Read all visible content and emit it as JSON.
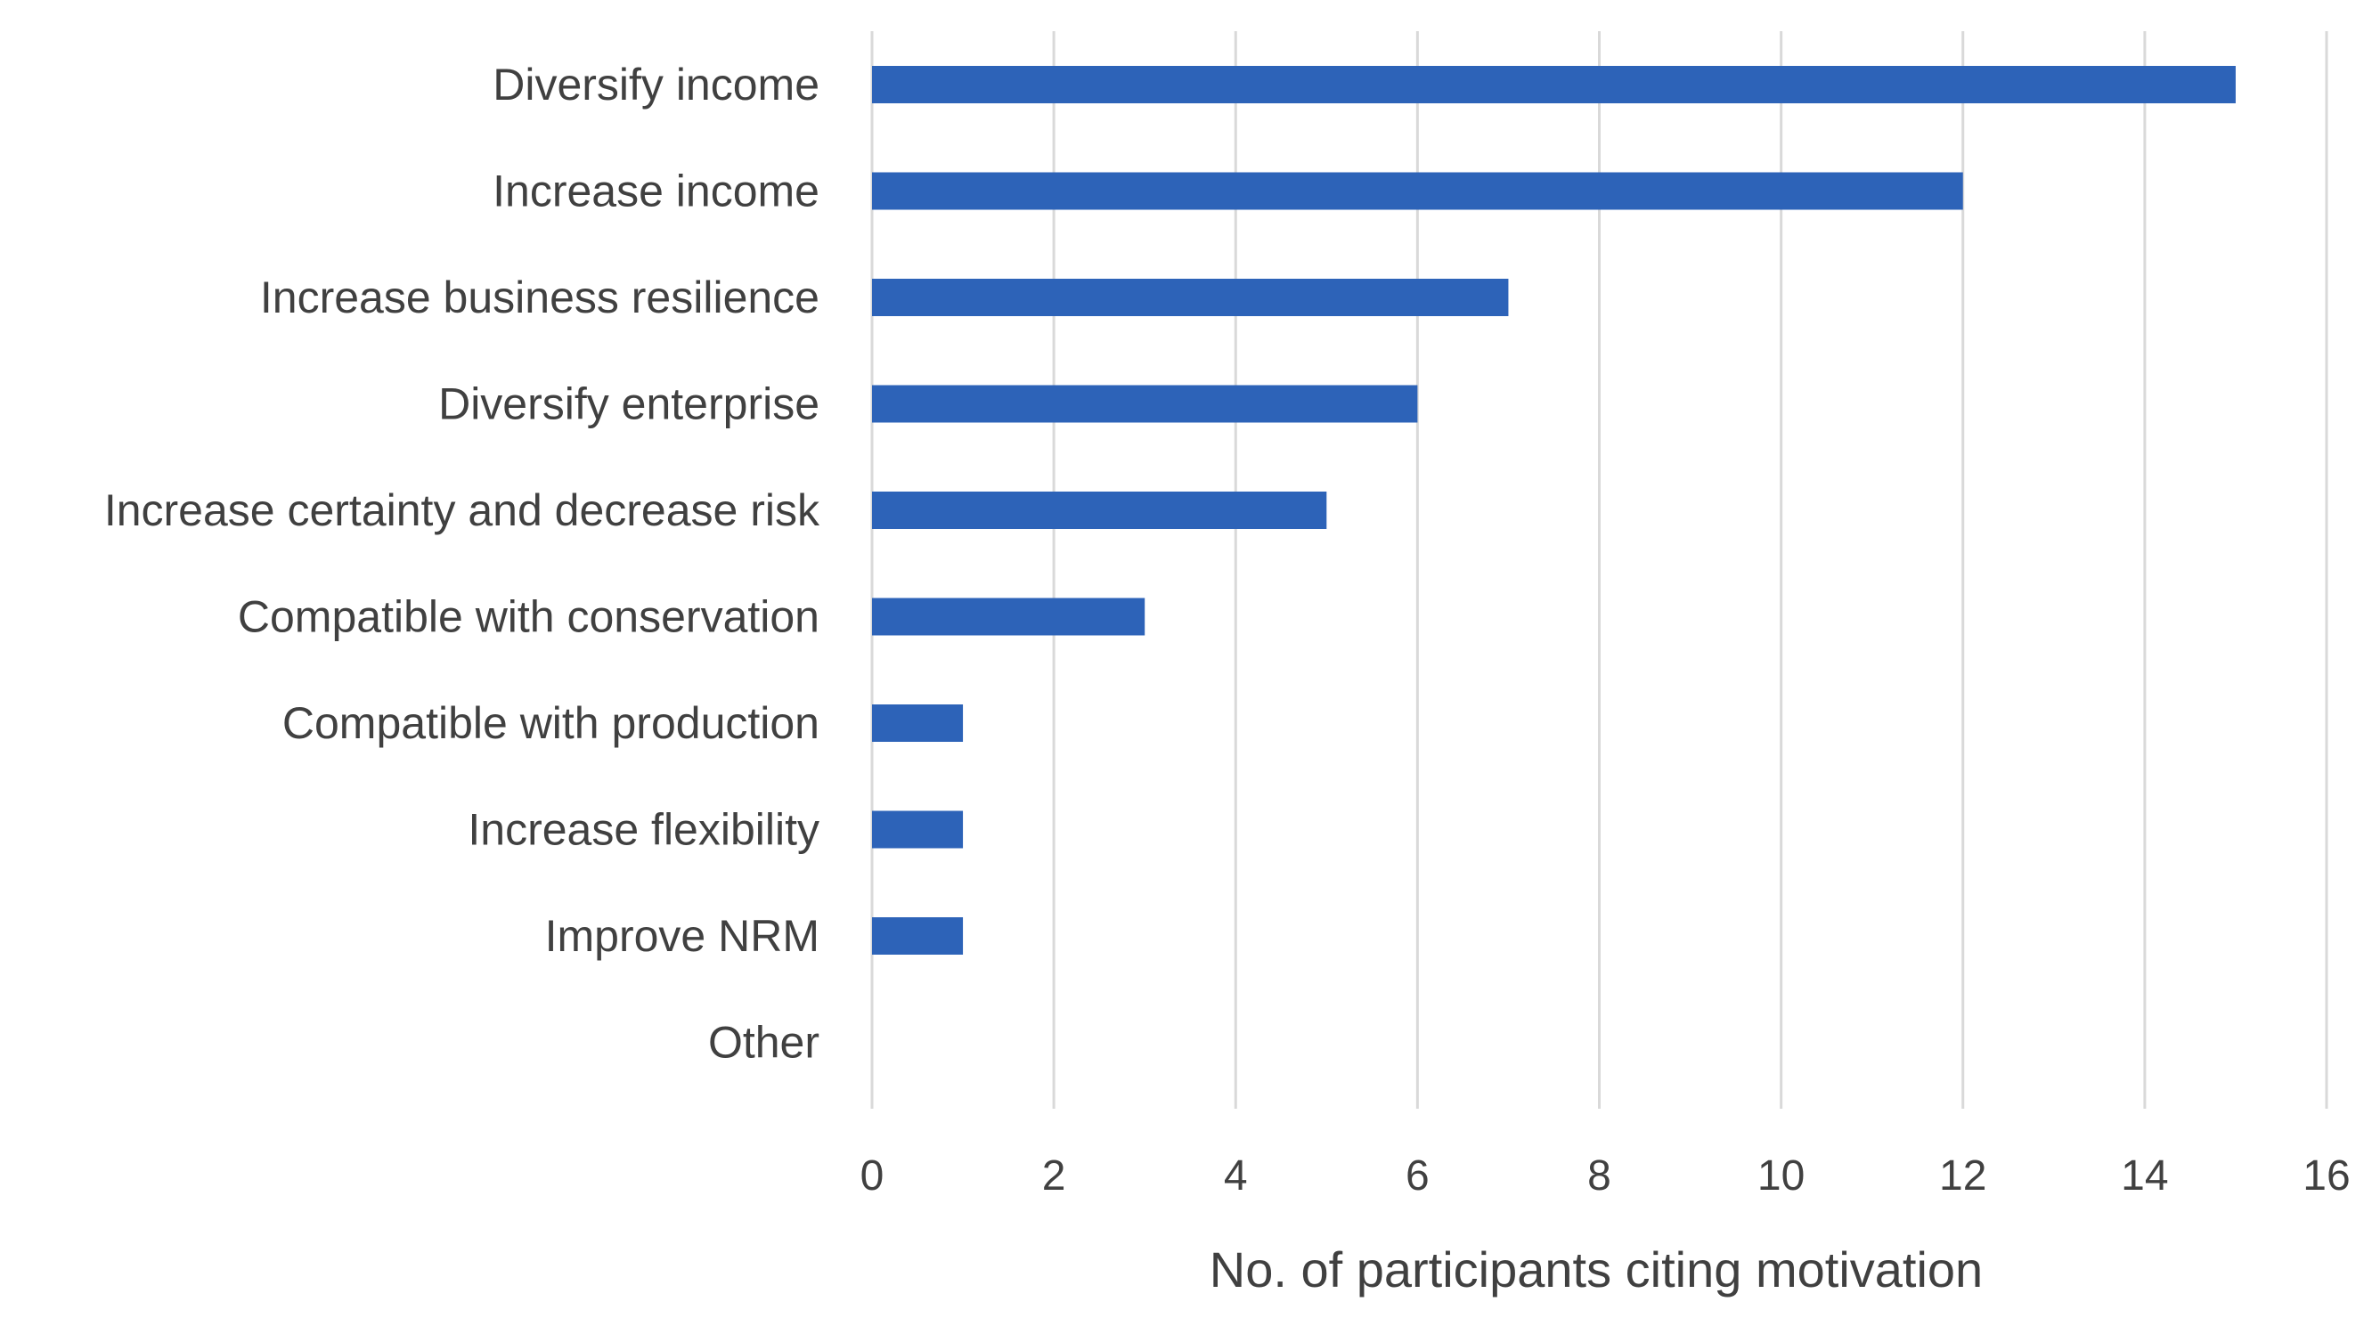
{
  "chart_data": {
    "type": "bar",
    "orientation": "horizontal",
    "title": "",
    "xlabel": "No. of participants citing motivation",
    "ylabel": "",
    "categories": [
      "Diversify income",
      "Increase income",
      "Increase business resilience",
      "Diversify enterprise",
      "Increase certainty and decrease risk",
      "Compatible with conservation",
      "Compatible with production",
      "Increase flexibility",
      "Improve NRM",
      "Other"
    ],
    "values": [
      15,
      12,
      7,
      6,
      5,
      3,
      1,
      1,
      1,
      0
    ],
    "xlim": [
      0,
      16
    ],
    "xticks": [
      0,
      2,
      4,
      6,
      8,
      10,
      12,
      14,
      16
    ],
    "grid": true,
    "legend": "none",
    "bar_color": "#2d63b8",
    "gridline_color": "#d9d9d9",
    "text_color": "#404040"
  }
}
